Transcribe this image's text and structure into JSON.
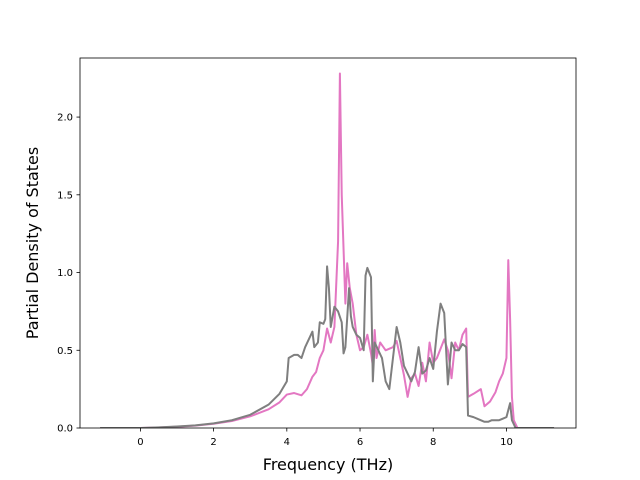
{
  "chart_data": {
    "type": "line",
    "title": "",
    "xlabel": "Frequency (THz)",
    "ylabel": "Partial Density of States",
    "xlim": [
      -1.65,
      11.9
    ],
    "ylim": [
      0.0,
      2.38
    ],
    "xticks": [
      0,
      2,
      4,
      6,
      8,
      10
    ],
    "xtick_labels": [
      "0",
      "2",
      "4",
      "6",
      "8",
      "10"
    ],
    "yticks": [
      0.0,
      0.5,
      1.0,
      1.5,
      2.0
    ],
    "ytick_labels": [
      "0.0",
      "0.5",
      "1.0",
      "1.5",
      "2.0"
    ],
    "grid": false,
    "legend": "none",
    "series": [
      {
        "color": "#e377c2",
        "points": [
          [
            -1.1,
            0
          ],
          [
            0.0,
            0
          ],
          [
            0.5,
            0.003
          ],
          [
            1.0,
            0.008
          ],
          [
            1.5,
            0.015
          ],
          [
            2.0,
            0.027
          ],
          [
            2.5,
            0.045
          ],
          [
            3.0,
            0.075
          ],
          [
            3.5,
            0.12
          ],
          [
            3.8,
            0.165
          ],
          [
            4.0,
            0.215
          ],
          [
            4.2,
            0.225
          ],
          [
            4.4,
            0.21
          ],
          [
            4.55,
            0.25
          ],
          [
            4.7,
            0.33
          ],
          [
            4.8,
            0.36
          ],
          [
            4.9,
            0.45
          ],
          [
            5.0,
            0.5
          ],
          [
            5.1,
            0.64
          ],
          [
            5.2,
            0.55
          ],
          [
            5.3,
            0.65
          ],
          [
            5.4,
            1.2
          ],
          [
            5.45,
            2.28
          ],
          [
            5.5,
            1.5
          ],
          [
            5.6,
            0.8
          ],
          [
            5.65,
            1.06
          ],
          [
            5.72,
            0.9
          ],
          [
            5.8,
            0.8
          ],
          [
            5.9,
            0.6
          ],
          [
            6.0,
            0.5
          ],
          [
            6.1,
            0.52
          ],
          [
            6.2,
            0.6
          ],
          [
            6.3,
            0.48
          ],
          [
            6.35,
            0.4
          ],
          [
            6.4,
            0.63
          ],
          [
            6.45,
            0.45
          ],
          [
            6.55,
            0.55
          ],
          [
            6.7,
            0.5
          ],
          [
            6.9,
            0.52
          ],
          [
            7.0,
            0.56
          ],
          [
            7.1,
            0.45
          ],
          [
            7.2,
            0.34
          ],
          [
            7.3,
            0.2
          ],
          [
            7.4,
            0.32
          ],
          [
            7.5,
            0.35
          ],
          [
            7.6,
            0.27
          ],
          [
            7.7,
            0.42
          ],
          [
            7.8,
            0.3
          ],
          [
            7.9,
            0.55
          ],
          [
            8.0,
            0.42
          ],
          [
            8.1,
            0.45
          ],
          [
            8.3,
            0.57
          ],
          [
            8.4,
            0.5
          ],
          [
            8.5,
            0.32
          ],
          [
            8.6,
            0.55
          ],
          [
            8.7,
            0.5
          ],
          [
            8.8,
            0.6
          ],
          [
            8.9,
            0.64
          ],
          [
            8.95,
            0.2
          ],
          [
            9.1,
            0.22
          ],
          [
            9.3,
            0.25
          ],
          [
            9.4,
            0.14
          ],
          [
            9.55,
            0.17
          ],
          [
            9.7,
            0.23
          ],
          [
            9.8,
            0.3
          ],
          [
            9.9,
            0.35
          ],
          [
            10.0,
            0.45
          ],
          [
            10.05,
            1.08
          ],
          [
            10.1,
            0.7
          ],
          [
            10.15,
            0.2
          ],
          [
            10.2,
            0.05
          ],
          [
            10.3,
            0
          ],
          [
            11.3,
            0
          ]
        ]
      },
      {
        "color": "#7f7f7f",
        "points": [
          [
            -1.1,
            0
          ],
          [
            0.0,
            0
          ],
          [
            0.5,
            0.004
          ],
          [
            1.0,
            0.01
          ],
          [
            1.5,
            0.017
          ],
          [
            2.0,
            0.03
          ],
          [
            2.5,
            0.05
          ],
          [
            3.0,
            0.085
          ],
          [
            3.5,
            0.15
          ],
          [
            3.8,
            0.22
          ],
          [
            4.0,
            0.3
          ],
          [
            4.05,
            0.45
          ],
          [
            4.2,
            0.47
          ],
          [
            4.3,
            0.47
          ],
          [
            4.4,
            0.45
          ],
          [
            4.5,
            0.52
          ],
          [
            4.7,
            0.62
          ],
          [
            4.75,
            0.52
          ],
          [
            4.85,
            0.55
          ],
          [
            4.9,
            0.68
          ],
          [
            5.0,
            0.67
          ],
          [
            5.05,
            0.7
          ],
          [
            5.1,
            1.04
          ],
          [
            5.15,
            0.9
          ],
          [
            5.2,
            0.65
          ],
          [
            5.3,
            0.78
          ],
          [
            5.4,
            0.75
          ],
          [
            5.5,
            0.68
          ],
          [
            5.55,
            0.48
          ],
          [
            5.6,
            0.52
          ],
          [
            5.7,
            0.9
          ],
          [
            5.75,
            0.72
          ],
          [
            5.8,
            0.65
          ],
          [
            5.9,
            0.6
          ],
          [
            6.0,
            0.58
          ],
          [
            6.1,
            0.5
          ],
          [
            6.15,
            0.98
          ],
          [
            6.2,
            1.03
          ],
          [
            6.3,
            0.97
          ],
          [
            6.35,
            0.3
          ],
          [
            6.4,
            0.55
          ],
          [
            6.5,
            0.5
          ],
          [
            6.6,
            0.45
          ],
          [
            6.7,
            0.3
          ],
          [
            6.8,
            0.25
          ],
          [
            6.9,
            0.45
          ],
          [
            7.0,
            0.65
          ],
          [
            7.1,
            0.55
          ],
          [
            7.2,
            0.4
          ],
          [
            7.3,
            0.35
          ],
          [
            7.4,
            0.3
          ],
          [
            7.5,
            0.36
          ],
          [
            7.6,
            0.52
          ],
          [
            7.7,
            0.35
          ],
          [
            7.8,
            0.37
          ],
          [
            7.9,
            0.45
          ],
          [
            8.0,
            0.38
          ],
          [
            8.1,
            0.62
          ],
          [
            8.2,
            0.8
          ],
          [
            8.3,
            0.74
          ],
          [
            8.4,
            0.28
          ],
          [
            8.5,
            0.55
          ],
          [
            8.6,
            0.5
          ],
          [
            8.7,
            0.5
          ],
          [
            8.8,
            0.54
          ],
          [
            8.9,
            0.52
          ],
          [
            8.95,
            0.08
          ],
          [
            9.1,
            0.07
          ],
          [
            9.2,
            0.06
          ],
          [
            9.4,
            0.04
          ],
          [
            9.5,
            0.04
          ],
          [
            9.6,
            0.05
          ],
          [
            9.8,
            0.05
          ],
          [
            9.9,
            0.06
          ],
          [
            10.0,
            0.07
          ],
          [
            10.1,
            0.16
          ],
          [
            10.15,
            0.05
          ],
          [
            10.25,
            0
          ],
          [
            11.3,
            0
          ]
        ]
      }
    ]
  }
}
